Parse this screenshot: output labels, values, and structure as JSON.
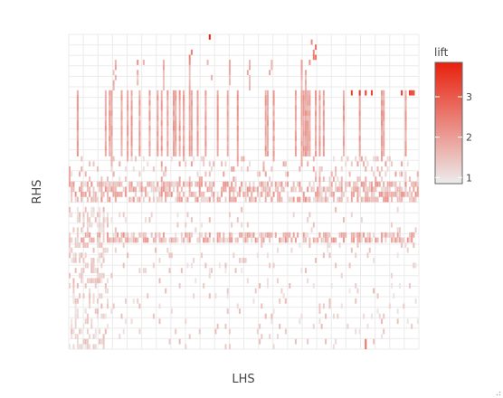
{
  "chart_data": {
    "type": "heatmap",
    "xlabel": "LHS",
    "ylabel": "RHS",
    "x_count": 175,
    "y_count": 62,
    "legend": {
      "title": "lift",
      "ticks": [
        1,
        2,
        3
      ],
      "range": [
        0.85,
        3.85
      ],
      "colors": [
        "#ececec",
        "#e8200d"
      ],
      "placement": "right"
    },
    "grid": true,
    "seed": 7,
    "rows": [
      {
        "y": 61,
        "cols": [
          70
        ],
        "lift": 3.8
      },
      {
        "y": 60,
        "cols": [
          121
        ],
        "lift": 2.4
      },
      {
        "y": 59,
        "cols": [
          123
        ],
        "lift": 2.6
      },
      {
        "y": 58,
        "cols": [
          61,
          122
        ],
        "lift": 2.2
      },
      {
        "y": 57,
        "cols": [
          60,
          122,
          123
        ],
        "lift": 2.3
      },
      {
        "y": 56,
        "cols": [
          23,
          34,
          37,
          47,
          60,
          69,
          80,
          90,
          101,
          116,
          120
        ],
        "lift": 1.9
      },
      {
        "y": 55,
        "cols": [
          23,
          47,
          60,
          80,
          90,
          101,
          116
        ],
        "lift": 1.8
      },
      {
        "y": 54,
        "cols": [
          22,
          34,
          47,
          60,
          80,
          89,
          100,
          116,
          118
        ],
        "lift": 1.7
      },
      {
        "y": 53,
        "cols": [
          23,
          34,
          47,
          60,
          71,
          80,
          90,
          116,
          118
        ],
        "lift": 1.6
      },
      {
        "y": 52,
        "cols": [
          22,
          34,
          47,
          60,
          80,
          90,
          116,
          118
        ],
        "lift": 1.6
      },
      {
        "y": 51,
        "cols": [
          22,
          47,
          60,
          90,
          116,
          118
        ],
        "lift": 1.6
      },
      {
        "y": 50,
        "cols": [
          4,
          18,
          20,
          21,
          26,
          29,
          31,
          35,
          40,
          44,
          46,
          49,
          52,
          53,
          55,
          57,
          60,
          61,
          64,
          68,
          74,
          79,
          84,
          98,
          99,
          102,
          113,
          116,
          117,
          118,
          119,
          120,
          123,
          125,
          127,
          137,
          145,
          156,
          157,
          168
        ],
        "lift": 1.9
      },
      {
        "y": 49,
        "cols": [
          4,
          18,
          20,
          21,
          26,
          29,
          31,
          35,
          40,
          44,
          46,
          49,
          52,
          53,
          55,
          57,
          60,
          61,
          64,
          68,
          74,
          79,
          84,
          98,
          99,
          102,
          113,
          116,
          117,
          118,
          119,
          120,
          123,
          125,
          127,
          137,
          145,
          156,
          157,
          168
        ],
        "lift": 1.9
      },
      {
        "y": 48,
        "cols": [
          4,
          18,
          20,
          21,
          26,
          29,
          31,
          35,
          40,
          44,
          46,
          49,
          52,
          53,
          55,
          57,
          60,
          61,
          64,
          68,
          74,
          79,
          84,
          98,
          99,
          102,
          113,
          116,
          117,
          118,
          119,
          120,
          123,
          125,
          127,
          137,
          145,
          156,
          157,
          168
        ],
        "lift": 1.9
      },
      {
        "y": 47,
        "cols": [
          4,
          18,
          20,
          21,
          26,
          29,
          31,
          35,
          40,
          44,
          46,
          49,
          52,
          53,
          55,
          57,
          60,
          61,
          64,
          68,
          74,
          79,
          84,
          98,
          99,
          102,
          113,
          116,
          117,
          118,
          119,
          120,
          123,
          125,
          127,
          137,
          145,
          156,
          157,
          168
        ],
        "lift": 1.9
      },
      {
        "y": 46,
        "cols": [
          4,
          18,
          20,
          21,
          26,
          29,
          31,
          35,
          40,
          44,
          46,
          49,
          52,
          53,
          55,
          57,
          60,
          61,
          64,
          68,
          74,
          79,
          84,
          98,
          99,
          102,
          113,
          116,
          117,
          118,
          119,
          120,
          123,
          125,
          127,
          137,
          145,
          156,
          157,
          168
        ],
        "lift": 1.9
      },
      {
        "y": 45,
        "cols": [
          4,
          18,
          20,
          21,
          26,
          29,
          31,
          35,
          40,
          44,
          46,
          49,
          52,
          53,
          55,
          57,
          60,
          61,
          64,
          68,
          74,
          79,
          84,
          98,
          99,
          102,
          113,
          116,
          117,
          118,
          119,
          120,
          123,
          125,
          127,
          137,
          145,
          156,
          157,
          168
        ],
        "lift": 1.9
      },
      {
        "y": 44,
        "cols": [
          4,
          18,
          20,
          21,
          26,
          29,
          31,
          35,
          40,
          44,
          46,
          49,
          52,
          53,
          55,
          57,
          60,
          61,
          64,
          68,
          74,
          79,
          84,
          98,
          99,
          102,
          113,
          116,
          117,
          118,
          119,
          120,
          123,
          125,
          127,
          137,
          145,
          156,
          157,
          168
        ],
        "lift": 1.9
      },
      {
        "y": 43,
        "cols": [
          4,
          18,
          20,
          21,
          26,
          29,
          31,
          35,
          40,
          44,
          46,
          49,
          52,
          53,
          55,
          57,
          60,
          61,
          64,
          68,
          74,
          79,
          84,
          98,
          99,
          102,
          113,
          116,
          117,
          118,
          119,
          120,
          123,
          125,
          127,
          137,
          145,
          156,
          157,
          168
        ],
        "lift": 1.9
      },
      {
        "y": 42,
        "cols": [
          4,
          18,
          20,
          21,
          26,
          29,
          31,
          35,
          40,
          44,
          46,
          49,
          52,
          53,
          55,
          57,
          60,
          61,
          64,
          68,
          74,
          79,
          84,
          98,
          99,
          102,
          113,
          116,
          117,
          118,
          119,
          120,
          123,
          125,
          127,
          137,
          145,
          156,
          157,
          168
        ],
        "lift": 1.9
      },
      {
        "y": 41,
        "cols": [
          4,
          18,
          20,
          21,
          26,
          29,
          31,
          35,
          40,
          44,
          46,
          49,
          52,
          53,
          55,
          57,
          60,
          61,
          64,
          68,
          74,
          79,
          84,
          98,
          99,
          102,
          113,
          116,
          117,
          118,
          119,
          120,
          123,
          125,
          127,
          137,
          145,
          156,
          157,
          168
        ],
        "lift": 1.9
      },
      {
        "y": 40,
        "cols": [
          4,
          18,
          20,
          21,
          26,
          29,
          31,
          35,
          40,
          44,
          46,
          49,
          52,
          53,
          55,
          57,
          60,
          61,
          64,
          68,
          74,
          79,
          84,
          98,
          99,
          102,
          113,
          116,
          117,
          118,
          119,
          120,
          123,
          125,
          127,
          137,
          145,
          156,
          157,
          168
        ],
        "lift": 1.9
      },
      {
        "y": 39,
        "cols": [
          4,
          18,
          20,
          21,
          26,
          29,
          31,
          35,
          40,
          44,
          46,
          49,
          52,
          53,
          55,
          57,
          60,
          61,
          64,
          68,
          74,
          79,
          84,
          98,
          99,
          102,
          113,
          116,
          117,
          118,
          119,
          120,
          123,
          125,
          127,
          137,
          145,
          156,
          157,
          168
        ],
        "lift": 1.9
      },
      {
        "y": 38,
        "cols": [
          4,
          18,
          20,
          21,
          26,
          29,
          31,
          35,
          40,
          44,
          46,
          49,
          52,
          53,
          55,
          57,
          60,
          61,
          64,
          68,
          74,
          79,
          84,
          98,
          99,
          102,
          113,
          116,
          117,
          118,
          119,
          120,
          123,
          125,
          127,
          137,
          145,
          156,
          157,
          168
        ],
        "lift": 1.9
      }
    ]
  }
}
